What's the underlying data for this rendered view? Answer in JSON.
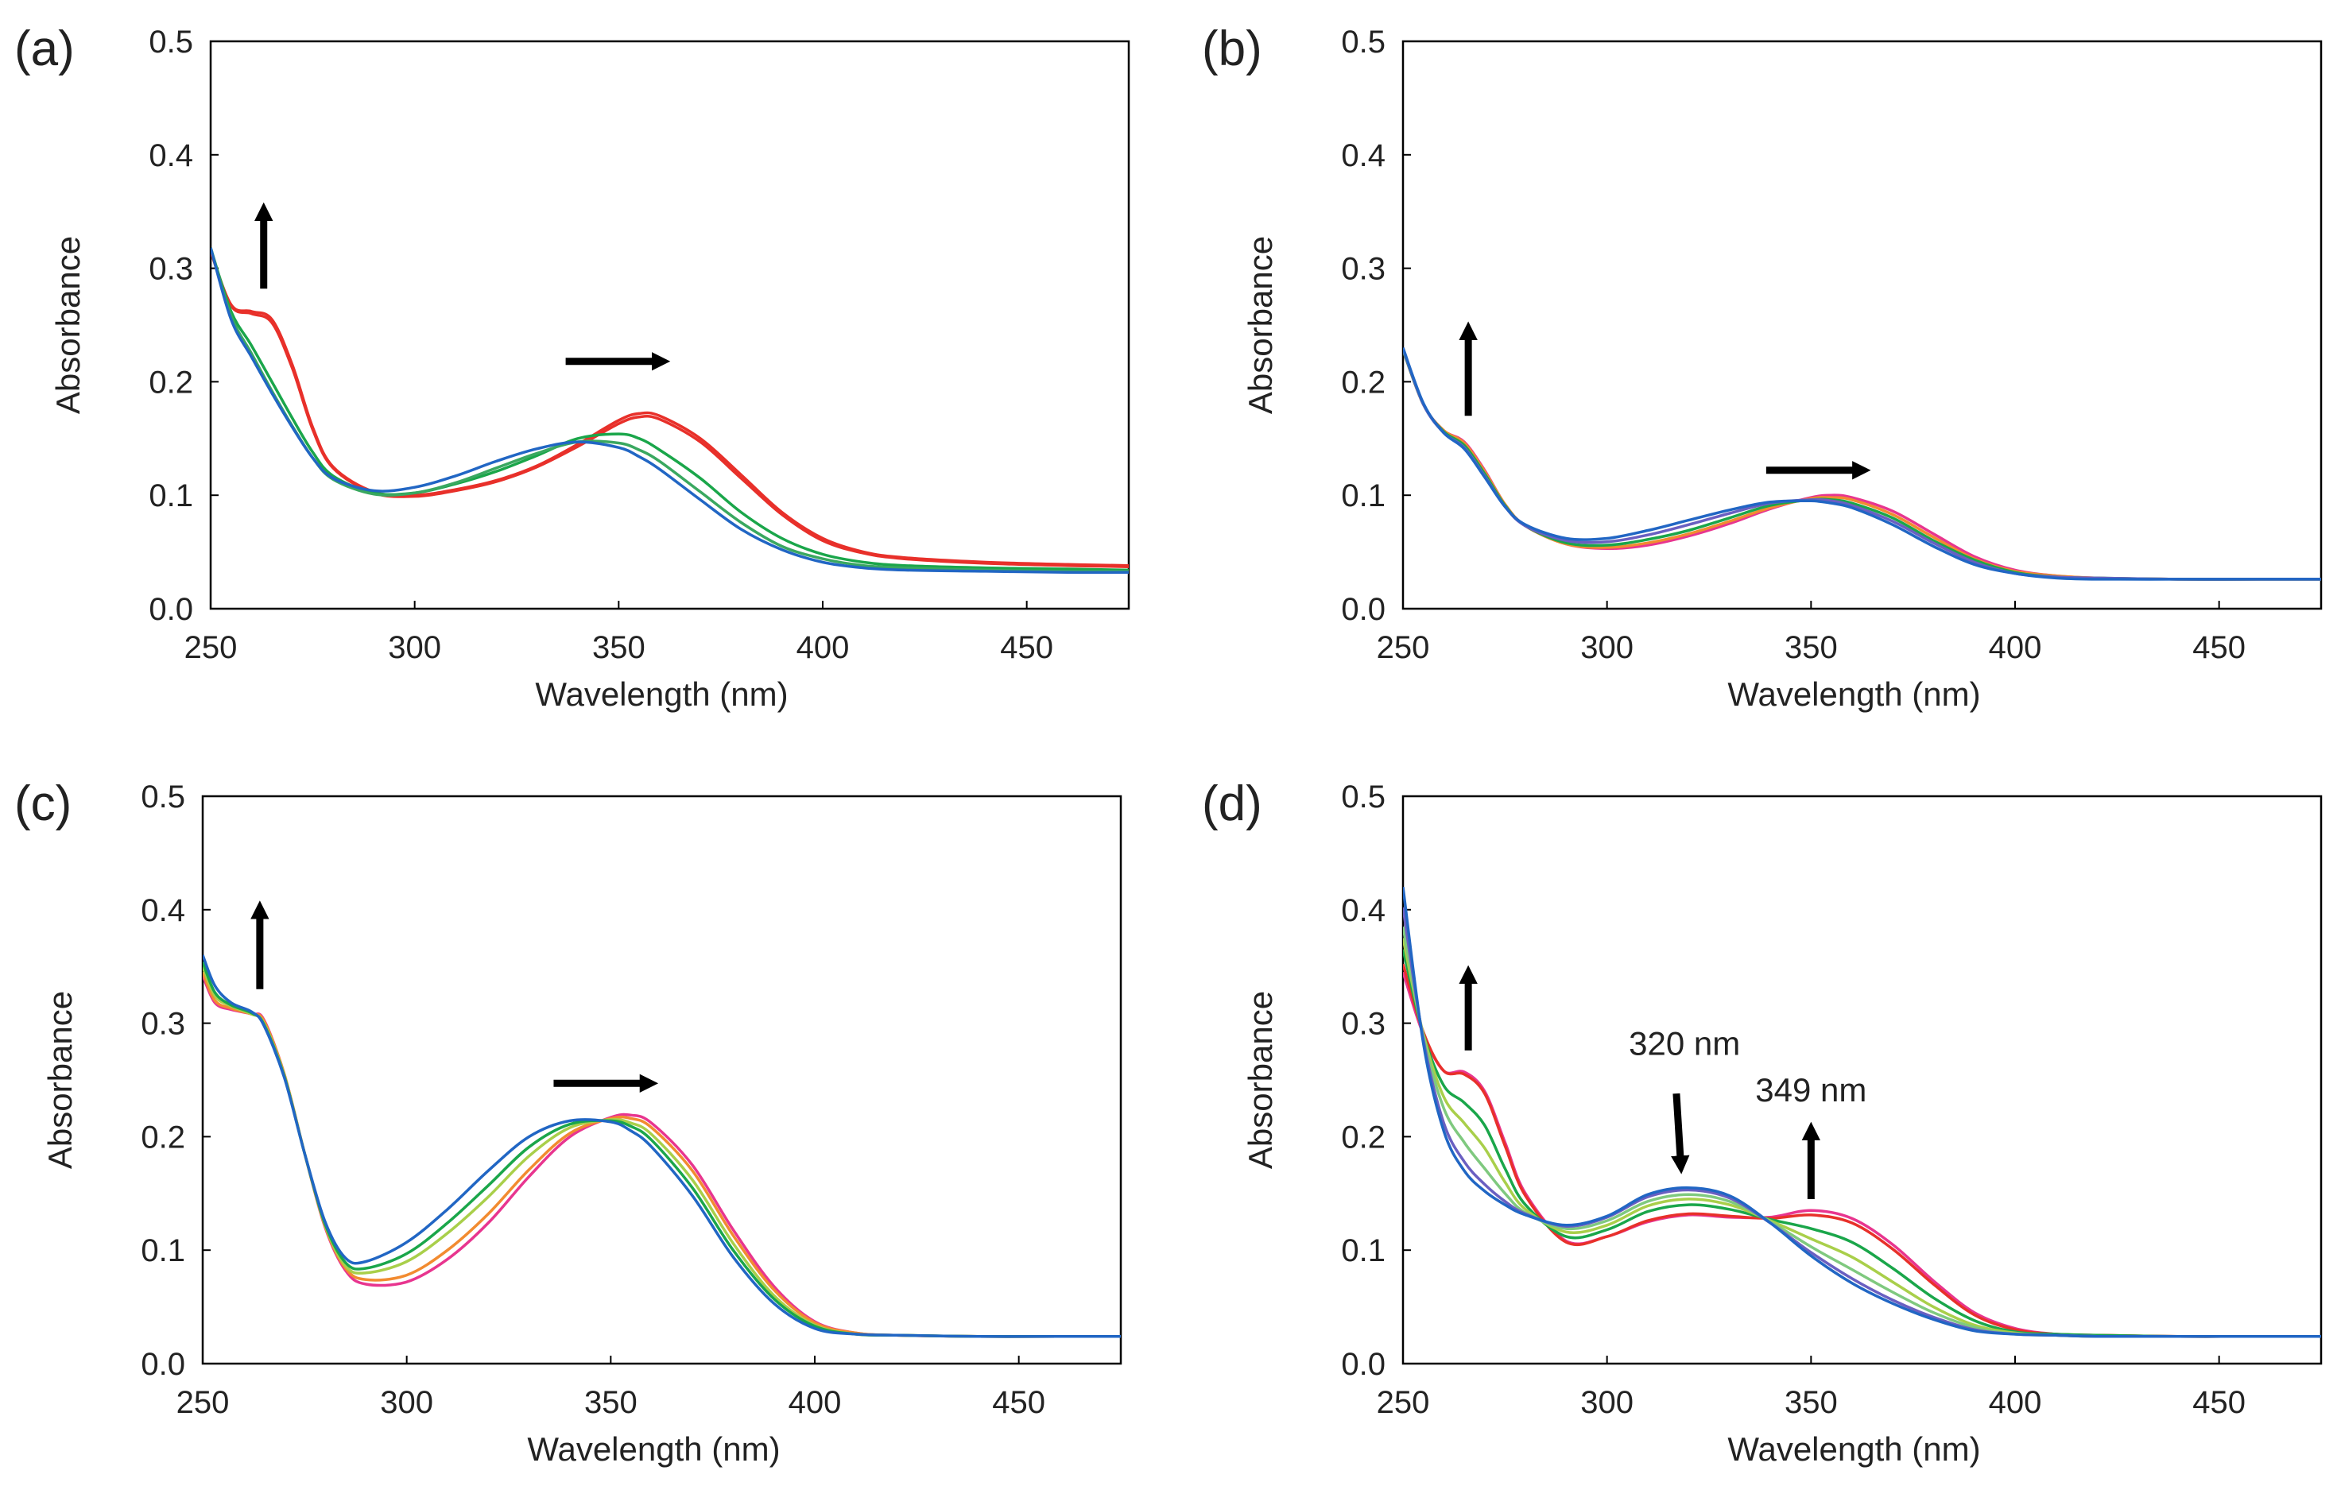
{
  "figure": {
    "colors": {
      "red": "#e8302a",
      "magenta": "#e8358f",
      "orange": "#f28b30",
      "yellowgreen": "#a9cf4a",
      "lightgreen": "#7fc97f",
      "green": "#1aa64a",
      "teal": "#1c9a8f",
      "blue": "#2166c4",
      "purple": "#6a5fc1"
    }
  },
  "chart_data": [
    {
      "panel": "(a)",
      "type": "line",
      "xlabel": "Wavelength (nm)",
      "ylabel": "Absorbance",
      "xlim": [
        250,
        475
      ],
      "ylim": [
        0,
        0.5
      ],
      "xticks": [
        "250",
        "300",
        "350",
        "400",
        "450"
      ],
      "yticks": [
        "0.0",
        "0.1",
        "0.2",
        "0.3",
        "0.4",
        "0.5"
      ],
      "x": [
        250,
        255,
        260,
        265,
        270,
        275,
        280,
        290,
        300,
        310,
        320,
        330,
        340,
        350,
        355,
        360,
        370,
        380,
        390,
        400,
        410,
        420,
        440,
        460,
        475
      ],
      "series": [
        {
          "name": "red-1",
          "color": "#e8302a",
          "values": [
            0.315,
            0.268,
            0.262,
            0.255,
            0.215,
            0.16,
            0.125,
            0.103,
            0.1,
            0.105,
            0.113,
            0.126,
            0.145,
            0.166,
            0.172,
            0.17,
            0.15,
            0.118,
            0.085,
            0.062,
            0.05,
            0.045,
            0.041,
            0.039,
            0.038
          ]
        },
        {
          "name": "red-2",
          "color": "#e8302a",
          "values": [
            0.315,
            0.267,
            0.26,
            0.252,
            0.212,
            0.158,
            0.124,
            0.102,
            0.099,
            0.104,
            0.112,
            0.125,
            0.143,
            0.163,
            0.169,
            0.167,
            0.147,
            0.115,
            0.083,
            0.06,
            0.049,
            0.044,
            0.04,
            0.038,
            0.037
          ]
        },
        {
          "name": "green-1",
          "color": "#1aa64a",
          "values": [
            0.318,
            0.262,
            0.232,
            0.2,
            0.168,
            0.138,
            0.117,
            0.102,
            0.102,
            0.11,
            0.121,
            0.135,
            0.15,
            0.154,
            0.15,
            0.14,
            0.115,
            0.085,
            0.062,
            0.048,
            0.041,
            0.038,
            0.036,
            0.035,
            0.034
          ]
        },
        {
          "name": "green-2",
          "color": "#3aa860",
          "values": [
            0.318,
            0.258,
            0.225,
            0.192,
            0.161,
            0.133,
            0.114,
            0.101,
            0.102,
            0.111,
            0.124,
            0.137,
            0.147,
            0.146,
            0.14,
            0.13,
            0.103,
            0.076,
            0.055,
            0.044,
            0.038,
            0.036,
            0.034,
            0.033,
            0.033
          ]
        },
        {
          "name": "blue",
          "color": "#2166c4",
          "values": [
            0.318,
            0.255,
            0.222,
            0.19,
            0.16,
            0.133,
            0.115,
            0.104,
            0.107,
            0.117,
            0.13,
            0.141,
            0.147,
            0.142,
            0.134,
            0.123,
            0.096,
            0.07,
            0.052,
            0.041,
            0.036,
            0.034,
            0.033,
            0.032,
            0.032
          ]
        }
      ],
      "annotations": []
    },
    {
      "panel": "(b)",
      "type": "line",
      "xlabel": "Wavelength (nm)",
      "ylabel": "Absorbance",
      "xlim": [
        250,
        475
      ],
      "ylim": [
        0,
        0.5
      ],
      "xticks": [
        "250",
        "300",
        "350",
        "400",
        "450"
      ],
      "yticks": [
        "0.0",
        "0.1",
        "0.2",
        "0.3",
        "0.4",
        "0.5"
      ],
      "x": [
        250,
        255,
        260,
        265,
        270,
        275,
        280,
        290,
        300,
        310,
        320,
        330,
        340,
        350,
        355,
        360,
        370,
        380,
        390,
        400,
        410,
        420,
        440,
        460,
        475
      ],
      "series": [
        {
          "name": "magenta",
          "color": "#e8358f",
          "values": [
            0.228,
            0.18,
            0.157,
            0.147,
            0.122,
            0.092,
            0.073,
            0.057,
            0.053,
            0.056,
            0.064,
            0.075,
            0.088,
            0.098,
            0.1,
            0.098,
            0.086,
            0.066,
            0.046,
            0.034,
            0.029,
            0.027,
            0.026,
            0.026,
            0.026
          ]
        },
        {
          "name": "orange",
          "color": "#f28b30",
          "values": [
            0.228,
            0.18,
            0.157,
            0.146,
            0.121,
            0.092,
            0.073,
            0.057,
            0.054,
            0.058,
            0.066,
            0.077,
            0.089,
            0.097,
            0.098,
            0.096,
            0.083,
            0.063,
            0.044,
            0.033,
            0.029,
            0.027,
            0.026,
            0.026,
            0.026
          ]
        },
        {
          "name": "green",
          "color": "#1aa64a",
          "values": [
            0.228,
            0.18,
            0.156,
            0.144,
            0.119,
            0.091,
            0.073,
            0.058,
            0.056,
            0.061,
            0.069,
            0.08,
            0.091,
            0.096,
            0.096,
            0.093,
            0.08,
            0.06,
            0.043,
            0.032,
            0.028,
            0.027,
            0.026,
            0.026,
            0.026
          ]
        },
        {
          "name": "purple",
          "color": "#6a5fc1",
          "values": [
            0.229,
            0.18,
            0.155,
            0.142,
            0.117,
            0.09,
            0.073,
            0.06,
            0.059,
            0.065,
            0.074,
            0.084,
            0.093,
            0.096,
            0.095,
            0.091,
            0.077,
            0.058,
            0.041,
            0.031,
            0.028,
            0.027,
            0.026,
            0.026,
            0.026
          ]
        },
        {
          "name": "blue",
          "color": "#2166c4",
          "values": [
            0.23,
            0.181,
            0.155,
            0.141,
            0.116,
            0.09,
            0.074,
            0.062,
            0.062,
            0.069,
            0.078,
            0.087,
            0.094,
            0.095,
            0.093,
            0.089,
            0.074,
            0.055,
            0.039,
            0.031,
            0.027,
            0.026,
            0.026,
            0.026,
            0.026
          ]
        }
      ],
      "annotations": []
    },
    {
      "panel": "(c)",
      "type": "line",
      "xlabel": "Wavelength (nm)",
      "ylabel": "Absorbance",
      "xlim": [
        250,
        475
      ],
      "ylim": [
        0,
        0.5
      ],
      "xticks": [
        "250",
        "300",
        "350",
        "400",
        "450"
      ],
      "yticks": [
        "0.0",
        "0.1",
        "0.2",
        "0.3",
        "0.4",
        "0.5"
      ],
      "x": [
        250,
        253,
        257,
        262,
        265,
        270,
        275,
        280,
        285,
        290,
        300,
        310,
        320,
        330,
        340,
        350,
        355,
        360,
        370,
        380,
        390,
        400,
        410,
        420,
        440,
        460,
        475
      ],
      "series": [
        {
          "name": "magenta",
          "color": "#e8358f",
          "values": [
            0.342,
            0.318,
            0.312,
            0.308,
            0.303,
            0.255,
            0.185,
            0.12,
            0.082,
            0.07,
            0.072,
            0.092,
            0.124,
            0.165,
            0.2,
            0.217,
            0.219,
            0.212,
            0.175,
            0.118,
            0.068,
            0.037,
            0.027,
            0.025,
            0.024,
            0.024,
            0.024
          ]
        },
        {
          "name": "orange",
          "color": "#f28b30",
          "values": [
            0.345,
            0.32,
            0.313,
            0.308,
            0.302,
            0.255,
            0.185,
            0.121,
            0.084,
            0.074,
            0.078,
            0.1,
            0.132,
            0.171,
            0.203,
            0.216,
            0.216,
            0.208,
            0.17,
            0.113,
            0.065,
            0.036,
            0.027,
            0.025,
            0.024,
            0.024,
            0.024
          ]
        },
        {
          "name": "yellowgreen",
          "color": "#a9cf4a",
          "values": [
            0.35,
            0.324,
            0.315,
            0.308,
            0.3,
            0.254,
            0.185,
            0.122,
            0.086,
            0.08,
            0.09,
            0.115,
            0.147,
            0.183,
            0.208,
            0.215,
            0.212,
            0.202,
            0.162,
            0.106,
            0.06,
            0.034,
            0.026,
            0.025,
            0.024,
            0.024,
            0.024
          ]
        },
        {
          "name": "green",
          "color": "#1aa64a",
          "values": [
            0.354,
            0.327,
            0.316,
            0.309,
            0.299,
            0.253,
            0.185,
            0.123,
            0.089,
            0.084,
            0.097,
            0.124,
            0.157,
            0.191,
            0.211,
            0.214,
            0.209,
            0.197,
            0.155,
            0.1,
            0.057,
            0.033,
            0.026,
            0.025,
            0.024,
            0.024,
            0.024
          ]
        },
        {
          "name": "blue",
          "color": "#2166c4",
          "values": [
            0.36,
            0.333,
            0.318,
            0.31,
            0.298,
            0.252,
            0.185,
            0.125,
            0.093,
            0.09,
            0.107,
            0.136,
            0.17,
            0.2,
            0.214,
            0.213,
            0.205,
            0.191,
            0.148,
            0.094,
            0.053,
            0.031,
            0.026,
            0.025,
            0.024,
            0.024,
            0.024
          ]
        }
      ],
      "annotations": []
    },
    {
      "panel": "(d)",
      "type": "line",
      "xlabel": "Wavelength (nm)",
      "ylabel": "Absorbance",
      "xlim": [
        250,
        475
      ],
      "ylim": [
        0,
        0.5
      ],
      "xticks": [
        "250",
        "300",
        "350",
        "400",
        "450"
      ],
      "yticks": [
        "0.0",
        "0.1",
        "0.2",
        "0.3",
        "0.4",
        "0.5"
      ],
      "x": [
        250,
        255,
        260,
        265,
        270,
        275,
        280,
        290,
        300,
        310,
        320,
        330,
        340,
        350,
        360,
        370,
        380,
        390,
        400,
        410,
        420,
        440,
        460,
        475
      ],
      "series": [
        {
          "name": "magenta",
          "color": "#e8358f",
          "values": [
            0.345,
            0.29,
            0.258,
            0.257,
            0.24,
            0.195,
            0.15,
            0.108,
            0.112,
            0.125,
            0.131,
            0.129,
            0.129,
            0.135,
            0.128,
            0.105,
            0.073,
            0.045,
            0.031,
            0.026,
            0.025,
            0.024,
            0.024,
            0.024
          ]
        },
        {
          "name": "red",
          "color": "#e8302a",
          "values": [
            0.352,
            0.292,
            0.258,
            0.255,
            0.238,
            0.192,
            0.148,
            0.107,
            0.112,
            0.126,
            0.132,
            0.13,
            0.128,
            0.131,
            0.124,
            0.101,
            0.07,
            0.043,
            0.03,
            0.026,
            0.025,
            0.024,
            0.024,
            0.024
          ]
        },
        {
          "name": "green-1",
          "color": "#1aa64a",
          "values": [
            0.365,
            0.29,
            0.245,
            0.23,
            0.21,
            0.172,
            0.14,
            0.112,
            0.118,
            0.134,
            0.14,
            0.136,
            0.127,
            0.119,
            0.107,
            0.084,
            0.058,
            0.038,
            0.028,
            0.026,
            0.025,
            0.024,
            0.024,
            0.024
          ]
        },
        {
          "name": "yellowgreen",
          "color": "#a9cf4a",
          "values": [
            0.375,
            0.29,
            0.235,
            0.212,
            0.19,
            0.16,
            0.136,
            0.116,
            0.122,
            0.139,
            0.145,
            0.14,
            0.126,
            0.11,
            0.094,
            0.072,
            0.05,
            0.034,
            0.027,
            0.025,
            0.024,
            0.024,
            0.024,
            0.024
          ]
        },
        {
          "name": "lightgreen",
          "color": "#7fc97f",
          "values": [
            0.385,
            0.288,
            0.225,
            0.195,
            0.172,
            0.15,
            0.133,
            0.119,
            0.126,
            0.143,
            0.149,
            0.143,
            0.125,
            0.103,
            0.083,
            0.063,
            0.045,
            0.032,
            0.026,
            0.025,
            0.024,
            0.024,
            0.024,
            0.024
          ]
        },
        {
          "name": "purple",
          "color": "#6a5fc1",
          "values": [
            0.402,
            0.285,
            0.212,
            0.178,
            0.158,
            0.143,
            0.132,
            0.121,
            0.129,
            0.147,
            0.153,
            0.146,
            0.124,
            0.098,
            0.075,
            0.056,
            0.041,
            0.03,
            0.026,
            0.025,
            0.024,
            0.024,
            0.024,
            0.024
          ]
        },
        {
          "name": "blue",
          "color": "#2166c4",
          "values": [
            0.42,
            0.282,
            0.205,
            0.17,
            0.152,
            0.14,
            0.131,
            0.122,
            0.13,
            0.149,
            0.155,
            0.148,
            0.124,
            0.095,
            0.071,
            0.053,
            0.039,
            0.029,
            0.026,
            0.025,
            0.024,
            0.024,
            0.024,
            0.024
          ]
        }
      ],
      "annotations": [
        "320 nm",
        "349 nm"
      ]
    }
  ]
}
